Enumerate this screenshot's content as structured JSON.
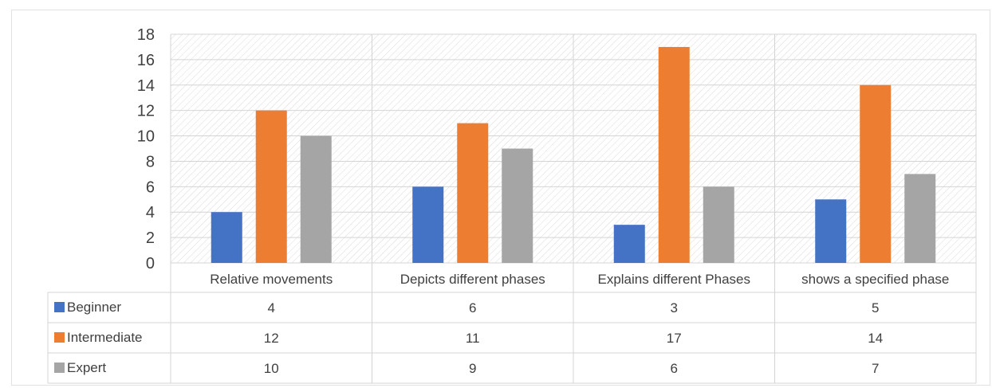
{
  "chart_data": {
    "type": "bar",
    "categories": [
      "Relative movements",
      "Depicts different phases",
      "Explains different Phases",
      "shows a specified phase"
    ],
    "series": [
      {
        "name": "Beginner",
        "color": "#4472C4",
        "values": [
          4,
          6,
          3,
          5
        ]
      },
      {
        "name": "Intermediate",
        "color": "#ED7D31",
        "values": [
          12,
          11,
          17,
          14
        ]
      },
      {
        "name": "Expert",
        "color": "#A5A5A5",
        "values": [
          10,
          9,
          6,
          7
        ]
      }
    ],
    "ylim": [
      0,
      18
    ],
    "yticks": [
      0,
      2,
      4,
      6,
      8,
      10,
      12,
      14,
      16,
      18
    ],
    "grid": true,
    "data_table": true
  }
}
